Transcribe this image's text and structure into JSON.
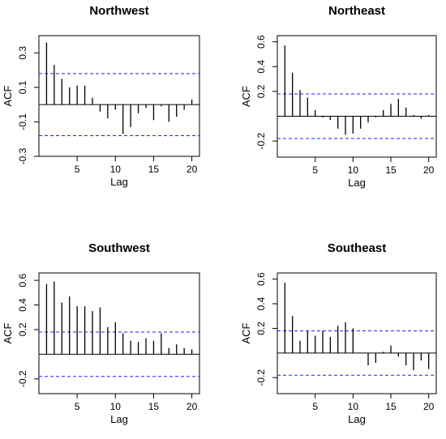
{
  "chart_data": [
    {
      "type": "bar",
      "title": "Northwest",
      "xlabel": "Lag",
      "ylabel": "ACF",
      "xlim": [
        0,
        21
      ],
      "ylim": [
        -0.3,
        0.4
      ],
      "xticks": [
        5,
        10,
        15,
        20
      ],
      "yticks": [
        -0.3,
        -0.1,
        0.1,
        0.3
      ],
      "ytick_labels": [
        "-0.3",
        "-0.1",
        "0.1",
        "0.3"
      ],
      "ci": 0.18,
      "x": [
        1,
        2,
        3,
        4,
        5,
        6,
        7,
        8,
        9,
        10,
        11,
        12,
        13,
        14,
        15,
        16,
        17,
        18,
        19,
        20
      ],
      "values": [
        0.36,
        0.23,
        0.15,
        0.1,
        0.11,
        0.11,
        0.04,
        -0.04,
        -0.08,
        -0.03,
        -0.17,
        -0.13,
        -0.05,
        -0.02,
        -0.09,
        -0.01,
        -0.1,
        -0.07,
        -0.03,
        0.03
      ]
    },
    {
      "type": "bar",
      "title": "Northeast",
      "xlabel": "Lag",
      "ylabel": "ACF",
      "xlim": [
        0,
        21
      ],
      "ylim": [
        -0.33,
        0.65
      ],
      "xticks": [
        5,
        10,
        15,
        20
      ],
      "yticks": [
        -0.2,
        0.2,
        0.4,
        0.6
      ],
      "ytick_labels": [
        "-0.2",
        "0.2",
        "0.4",
        "0.6"
      ],
      "ci": 0.18,
      "x": [
        1,
        2,
        3,
        4,
        5,
        6,
        7,
        8,
        9,
        10,
        11,
        12,
        13,
        14,
        15,
        16,
        17,
        18,
        19,
        20
      ],
      "values": [
        0.57,
        0.35,
        0.21,
        0.15,
        0.05,
        -0.01,
        -0.03,
        -0.1,
        -0.15,
        -0.14,
        -0.1,
        -0.05,
        -0.01,
        0.05,
        0.1,
        0.14,
        0.07,
        0.01,
        -0.02,
        0.01
      ]
    },
    {
      "type": "bar",
      "title": "Southwest",
      "xlabel": "Lag",
      "ylabel": "ACF",
      "xlim": [
        0,
        21
      ],
      "ylim": [
        -0.32,
        0.66
      ],
      "xticks": [
        5,
        10,
        15,
        20
      ],
      "yticks": [
        -0.2,
        0.2,
        0.4,
        0.6
      ],
      "ytick_labels": [
        "-0.2",
        "0.2",
        "0.4",
        "0.6"
      ],
      "ci": 0.18,
      "x": [
        1,
        2,
        3,
        4,
        5,
        6,
        7,
        8,
        9,
        10,
        11,
        12,
        13,
        14,
        15,
        16,
        17,
        18,
        19,
        20
      ],
      "values": [
        0.57,
        0.59,
        0.42,
        0.47,
        0.39,
        0.39,
        0.35,
        0.38,
        0.22,
        0.26,
        0.17,
        0.11,
        0.1,
        0.13,
        0.11,
        0.17,
        0.05,
        0.08,
        0.05,
        0.04
      ]
    },
    {
      "type": "bar",
      "title": "Southeast",
      "xlabel": "Lag",
      "ylabel": "ACF",
      "xlim": [
        0,
        21
      ],
      "ylim": [
        -0.33,
        0.65
      ],
      "xticks": [
        5,
        10,
        15,
        20
      ],
      "yticks": [
        -0.2,
        0.2,
        0.4,
        0.6
      ],
      "ytick_labels": [
        "-0.2",
        "0.2",
        "0.4",
        "0.6"
      ],
      "ci": 0.18,
      "x": [
        1,
        2,
        3,
        4,
        5,
        6,
        7,
        8,
        9,
        10,
        11,
        12,
        13,
        14,
        15,
        16,
        17,
        18,
        19,
        20
      ],
      "values": [
        0.57,
        0.3,
        0.1,
        0.18,
        0.14,
        0.18,
        0.13,
        0.22,
        0.25,
        0.2,
        0.0,
        -0.1,
        -0.08,
        0.01,
        0.06,
        -0.03,
        -0.1,
        -0.14,
        -0.06,
        -0.13
      ]
    }
  ]
}
